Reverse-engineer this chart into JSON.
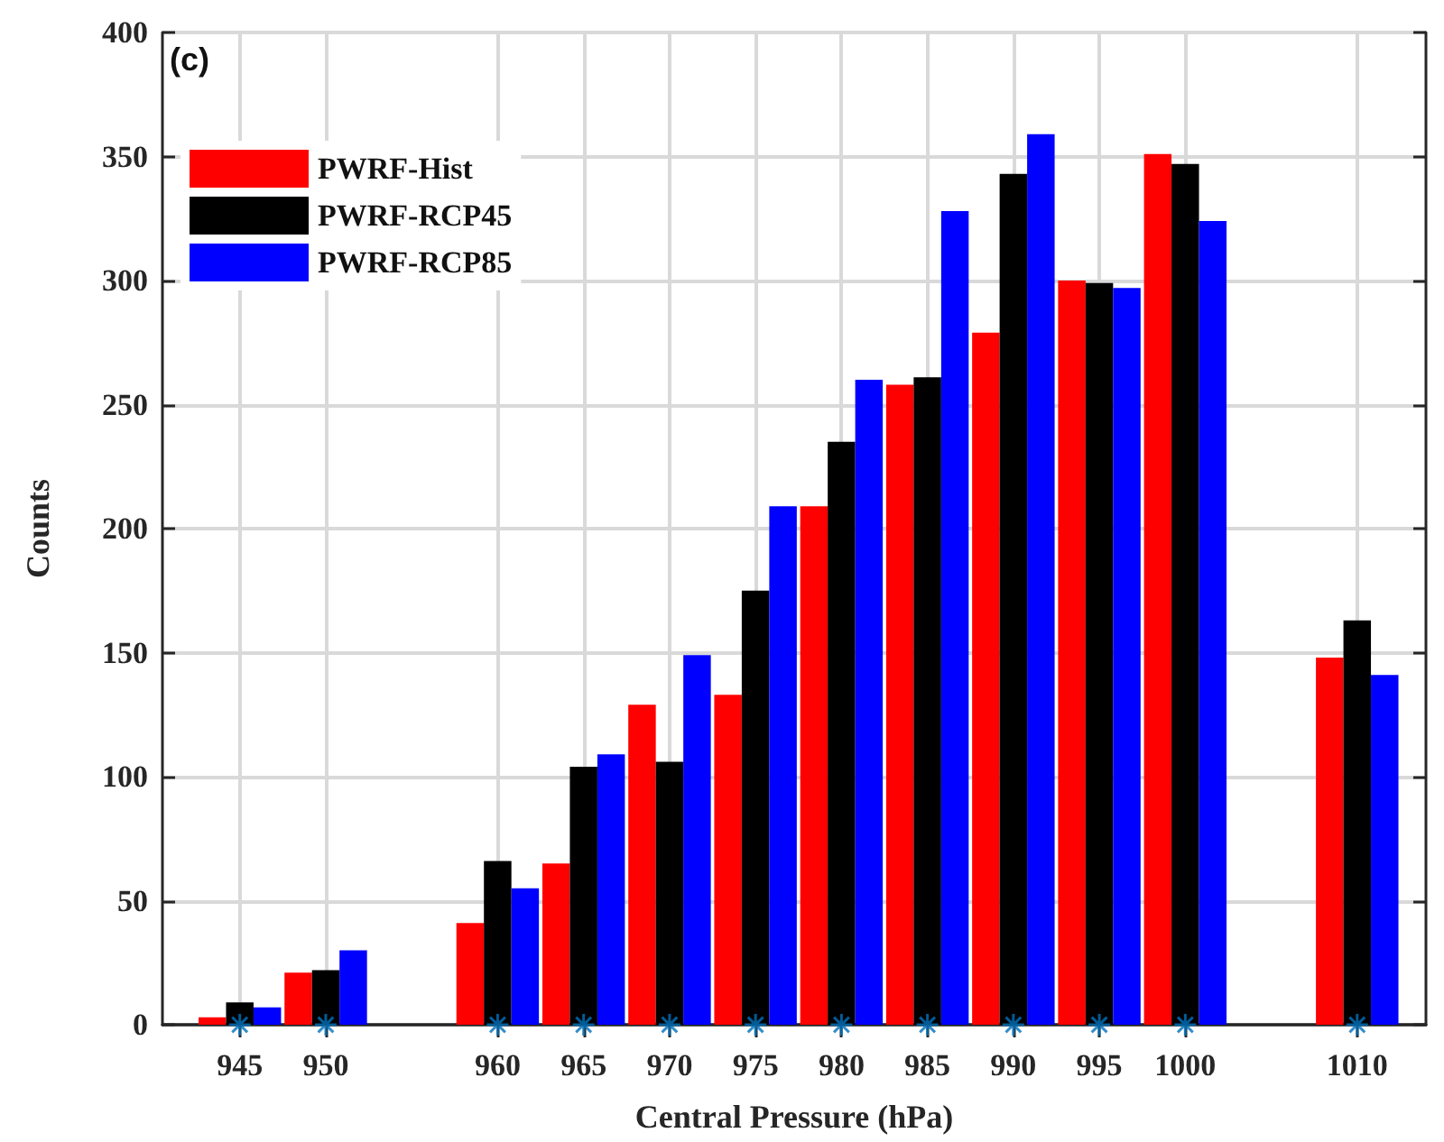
{
  "chart_data": {
    "type": "bar",
    "xlabel": "Central Pressure (hPa)",
    "ylabel": "Counts",
    "annotations": [
      "(c)"
    ],
    "x": [
      945,
      950,
      960,
      965,
      970,
      975,
      980,
      985,
      990,
      995,
      1000,
      1010
    ],
    "series": [
      {
        "name": "PWRF-Hist",
        "color": "#ff0000",
        "values": [
          3,
          21,
          41,
          65,
          129,
          133,
          209,
          258,
          279,
          300,
          351,
          148
        ]
      },
      {
        "name": "PWRF-RCP45",
        "color": "#000000",
        "values": [
          9,
          22,
          66,
          104,
          106,
          175,
          235,
          261,
          343,
          299,
          347,
          163
        ]
      },
      {
        "name": "PWRF-RCP85",
        "color": "#0000ff",
        "values": [
          7,
          30,
          55,
          109,
          149,
          209,
          260,
          328,
          359,
          297,
          324,
          141
        ]
      },
      {
        "type": "scatter",
        "color": "#0072bd",
        "values": [
          0,
          0,
          0,
          0,
          0,
          0,
          0,
          0,
          0,
          0,
          0,
          0
        ]
      }
    ],
    "xlim": [
      940.5,
      1014
    ],
    "xticks": [
      945,
      950,
      960,
      965,
      970,
      975,
      980,
      985,
      990,
      995,
      1000,
      1010
    ],
    "ylim": [
      0,
      400
    ],
    "yticks": [
      0,
      50,
      100,
      150,
      200,
      250,
      300,
      350,
      400
    ],
    "grid": true,
    "legend": "top left",
    "marker": "cross"
  }
}
